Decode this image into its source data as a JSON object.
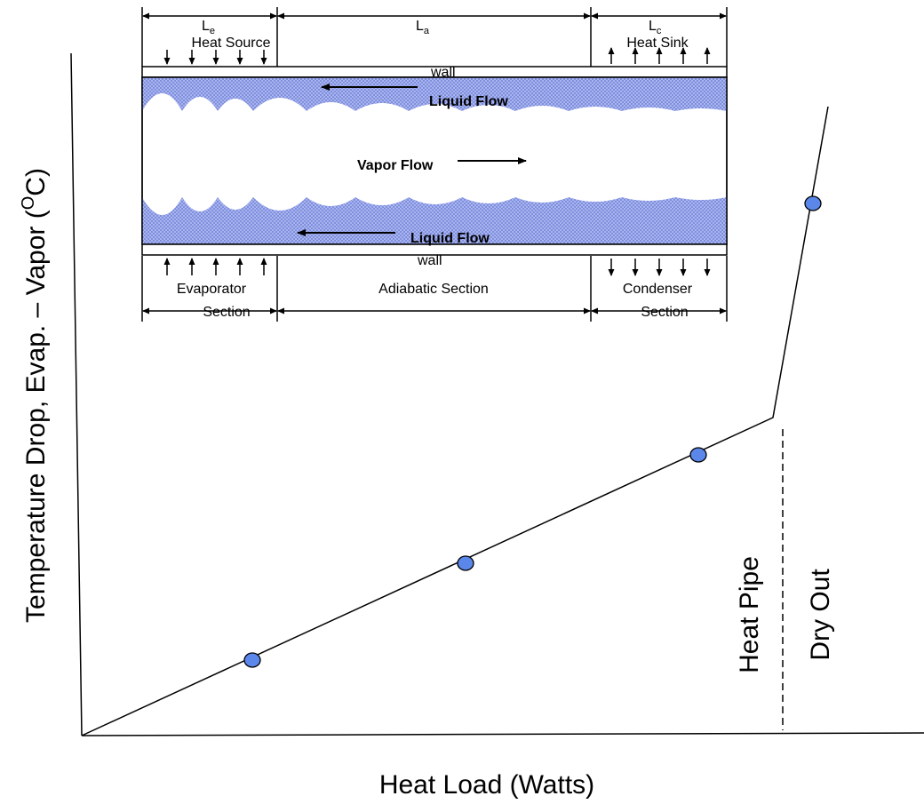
{
  "axes": {
    "y_label": {
      "before": "Temperature Drop, Evap. – Vapor (",
      "sup": "O",
      "after": "C)"
    },
    "x_label": "Heat Load (Watts)"
  },
  "regions": {
    "left": "Heat Pipe",
    "right": "Dry Out"
  },
  "pipe": {
    "lengths": [
      {
        "symbol": "L",
        "sub": "e"
      },
      {
        "symbol": "L",
        "sub": "a"
      },
      {
        "symbol": "L",
        "sub": "c"
      }
    ],
    "heat_source": "Heat Source",
    "heat_sink": "Heat Sink",
    "top_wall": "wall",
    "bottom_wall": "wall",
    "top_liquid": "Liquid Flow",
    "vapor": "Vapor Flow",
    "bottom_liquid": "Liquid Flow",
    "sections": {
      "evaporator": [
        "Evaporator",
        "Section"
      ],
      "adiabatic": "Adiabatic Section",
      "condenser": [
        "Condenser",
        "Section"
      ]
    }
  }
}
